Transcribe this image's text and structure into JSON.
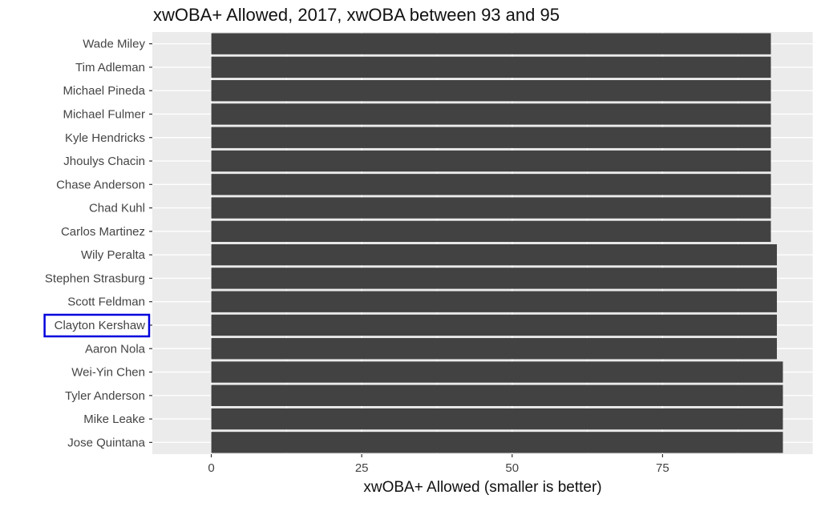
{
  "chart_data": {
    "type": "bar",
    "orientation": "horizontal",
    "title": "xwOBA+ Allowed, 2017, xwOBA between 93 and 95",
    "xlabel": "xwOBA+ Allowed (smaller is better)",
    "ylabel": "",
    "xlim": [
      -9.8,
      100
    ],
    "xticks": [
      0,
      25,
      50,
      75
    ],
    "grid": true,
    "highlighted_category": "Clayton Kershaw",
    "highlight_color": "#0000dd",
    "bar_color": "#424242",
    "panel_color": "#ebebeb",
    "categories": [
      "Wade Miley",
      "Tim Adleman",
      "Michael Pineda",
      "Michael Fulmer",
      "Kyle Hendricks",
      "Jhoulys Chacin",
      "Chase Anderson",
      "Chad Kuhl",
      "Carlos Martinez",
      "Wily Peralta",
      "Stephen Strasburg",
      "Scott Feldman",
      "Clayton Kershaw",
      "Aaron Nola",
      "Wei-Yin Chen",
      "Tyler Anderson",
      "Mike Leake",
      "Jose Quintana"
    ],
    "values": [
      93,
      93,
      93,
      93,
      93,
      93,
      93,
      93,
      93,
      94,
      94,
      94,
      94,
      94,
      95,
      95,
      95,
      95
    ]
  }
}
